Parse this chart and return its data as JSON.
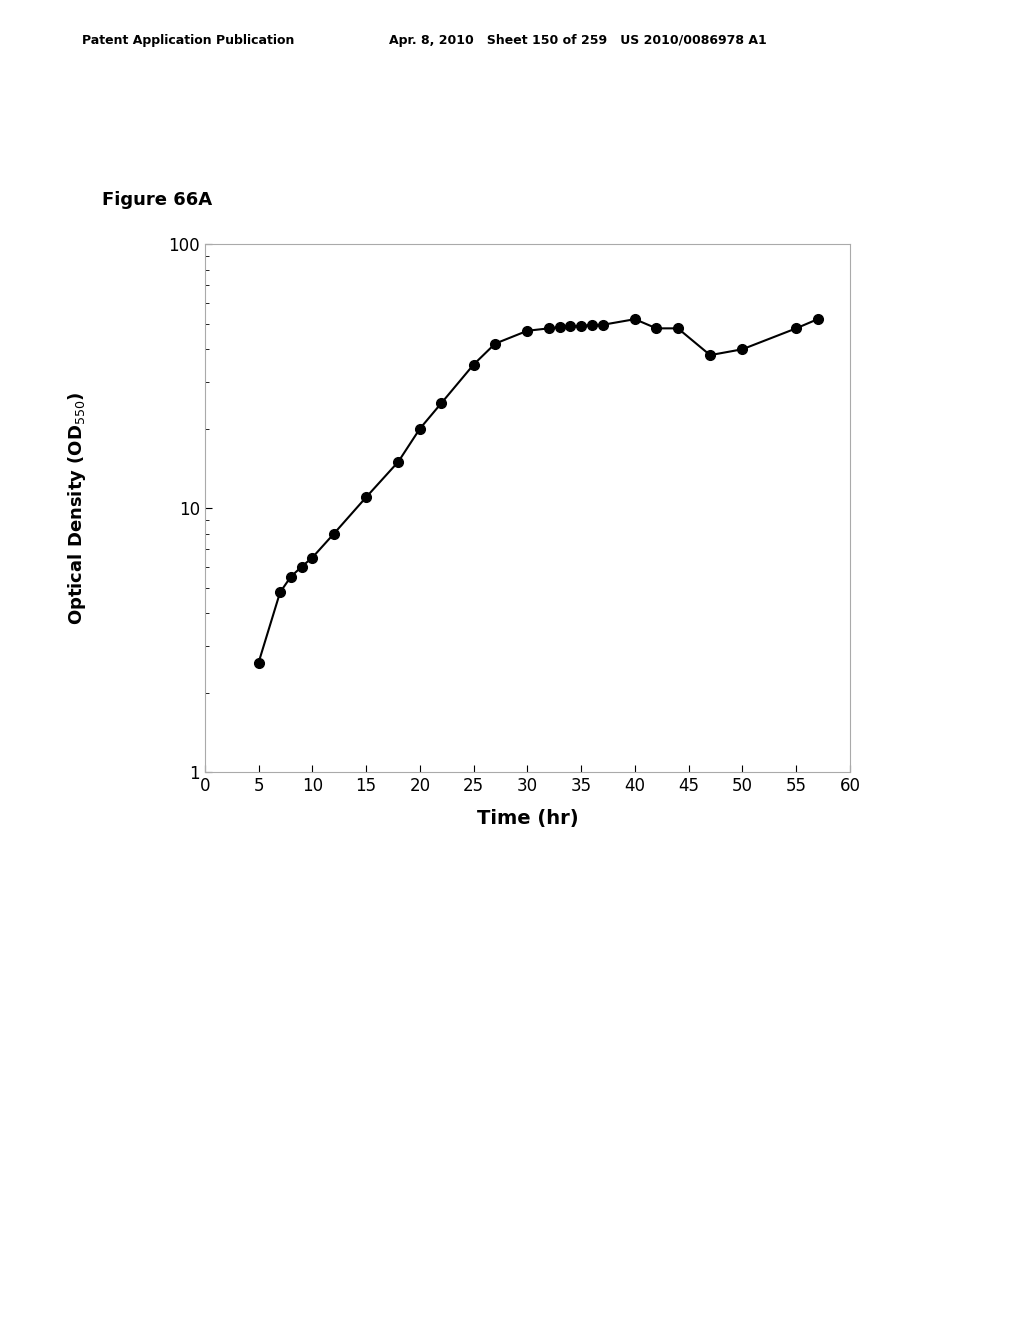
{
  "x": [
    5,
    7,
    8,
    9,
    10,
    12,
    15,
    18,
    20,
    22,
    25,
    27,
    30,
    32,
    33,
    34,
    35,
    36,
    37,
    40,
    42,
    44,
    47,
    50,
    55,
    57
  ],
  "y": [
    2.6,
    4.8,
    5.5,
    6.0,
    6.5,
    8.0,
    11.0,
    15.0,
    20.0,
    25.0,
    35.0,
    42.0,
    47.0,
    48.0,
    48.5,
    49.0,
    49.0,
    49.5,
    49.5,
    52.0,
    48.0,
    48.0,
    38.0,
    40.0,
    48.0,
    52.0
  ],
  "xlabel": "Time (hr)",
  "figure_label": "Figure 66A",
  "header_left": "Patent Application Publication",
  "header_mid": "Apr. 8, 2010   Sheet 150 of 259   US 2010/0086978 A1",
  "xlim": [
    0,
    60
  ],
  "ylim_log": [
    1,
    100
  ],
  "xticks": [
    0,
    5,
    10,
    15,
    20,
    25,
    30,
    35,
    40,
    45,
    50,
    55,
    60
  ],
  "line_color": "#000000",
  "marker_color": "#000000",
  "bg_color": "#ffffff",
  "marker_size": 7,
  "line_width": 1.5,
  "header_fontsize": 9,
  "figure_label_fontsize": 13,
  "tick_fontsize": 12,
  "xlabel_fontsize": 14,
  "ylabel_fontsize": 13,
  "ylabel_sub_fontsize": 9
}
